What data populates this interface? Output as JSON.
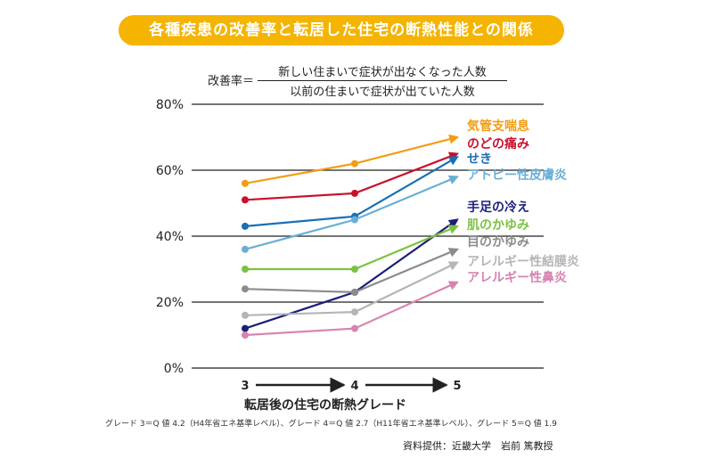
{
  "title": "各種疾患の改善率と転居した住宅の断熱性能との関係",
  "formula": {
    "lhs": "改善率＝",
    "numerator": "新しい住まいで症状が出なくなった人数",
    "denominator": "以前の住まいで症状が出ていた人数"
  },
  "footnote": "グレード 3＝Q 値 4.2（H4年省エネ基準レベル）、グレード 4＝Q 値 2.7（H11年省エネ基準レベル）、グレード 5＝Q 値 1.9",
  "credit": "資料提供：近畿大学　岩前 篤教授",
  "chart_data": {
    "type": "line",
    "title": "各種疾患の改善率と転居した住宅の断熱性能との関係",
    "xlabel": "転居後の住宅の断熱グレード",
    "ylabel": "",
    "x": [
      "3",
      "4",
      "5"
    ],
    "ylim": [
      0,
      80
    ],
    "yticks": [
      0,
      20,
      40,
      60,
      80
    ],
    "ytick_labels": [
      "0%",
      "20%",
      "40%",
      "60%",
      "80%"
    ],
    "grid": "horizontal",
    "legend": "right, labels at line ends",
    "series": [
      {
        "name": "気管支喘息",
        "values": [
          56,
          62,
          70
        ],
        "color": "#f39c12"
      },
      {
        "name": "のどの痛み",
        "values": [
          51,
          53,
          65
        ],
        "color": "#c8102e"
      },
      {
        "name": "せき",
        "values": [
          43,
          46,
          64
        ],
        "color": "#1a6fb5"
      },
      {
        "name": "アトピー性皮膚炎",
        "values": [
          36,
          45,
          58
        ],
        "color": "#6aaed6"
      },
      {
        "name": "手足の冷え",
        "values": [
          12,
          23,
          45
        ],
        "color": "#1c1f7a"
      },
      {
        "name": "肌のかゆみ",
        "values": [
          30,
          30,
          43
        ],
        "color": "#7cc242"
      },
      {
        "name": "目のかゆみ",
        "values": [
          24,
          23,
          36
        ],
        "color": "#8c8c8c"
      },
      {
        "name": "アレルギー性結膜炎",
        "values": [
          16,
          17,
          32
        ],
        "color": "#b5b5b5"
      },
      {
        "name": "アレルギー性鼻炎",
        "values": [
          10,
          12,
          26
        ],
        "color": "#d784b0"
      }
    ]
  }
}
